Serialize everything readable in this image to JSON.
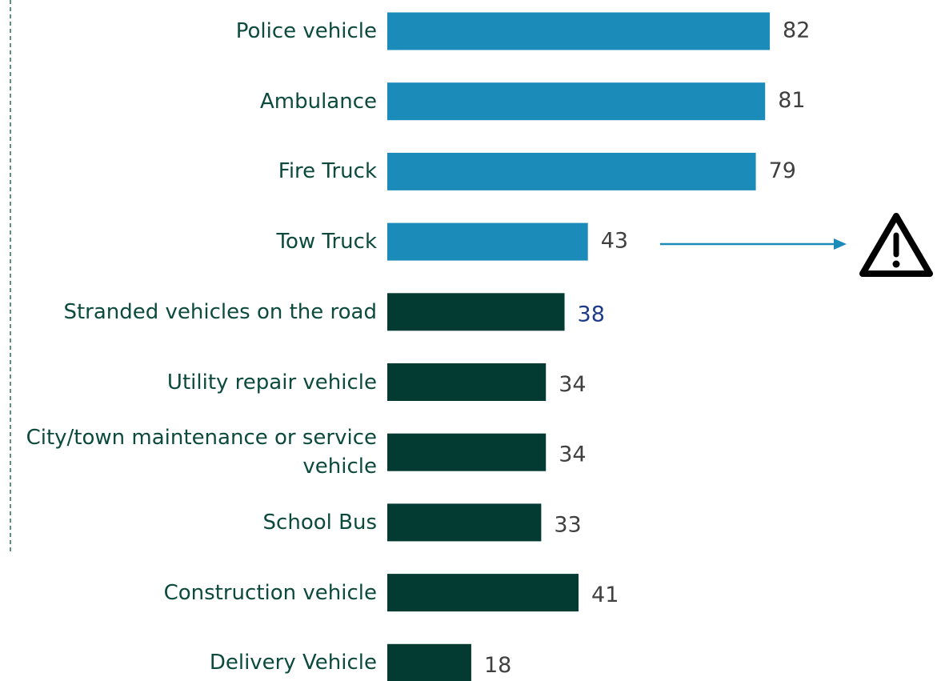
{
  "chart_data": {
    "type": "bar",
    "orientation": "horizontal",
    "categories": [
      "Police vehicle",
      "Ambulance",
      "Fire Truck",
      "Tow Truck",
      "Stranded vehicles on the road",
      "Utility repair vehicle",
      "City/town maintenance or service vehicle",
      "School Bus",
      "Construction vehicle",
      "Delivery Vehicle"
    ],
    "values": [
      82,
      81,
      79,
      43,
      38,
      34,
      34,
      33,
      41,
      18
    ],
    "colors": [
      "#1b8bba",
      "#1b8bba",
      "#1b8bba",
      "#1b8bba",
      "#033a31",
      "#033a31",
      "#033a31",
      "#033a31",
      "#033a31",
      "#033a31"
    ],
    "value_label_colors": [
      "#404040",
      "#404040",
      "#404040",
      "#404040",
      "#1f3a8a",
      "#404040",
      "#404040",
      "#404040",
      "#404040",
      "#404040"
    ]
  }
}
